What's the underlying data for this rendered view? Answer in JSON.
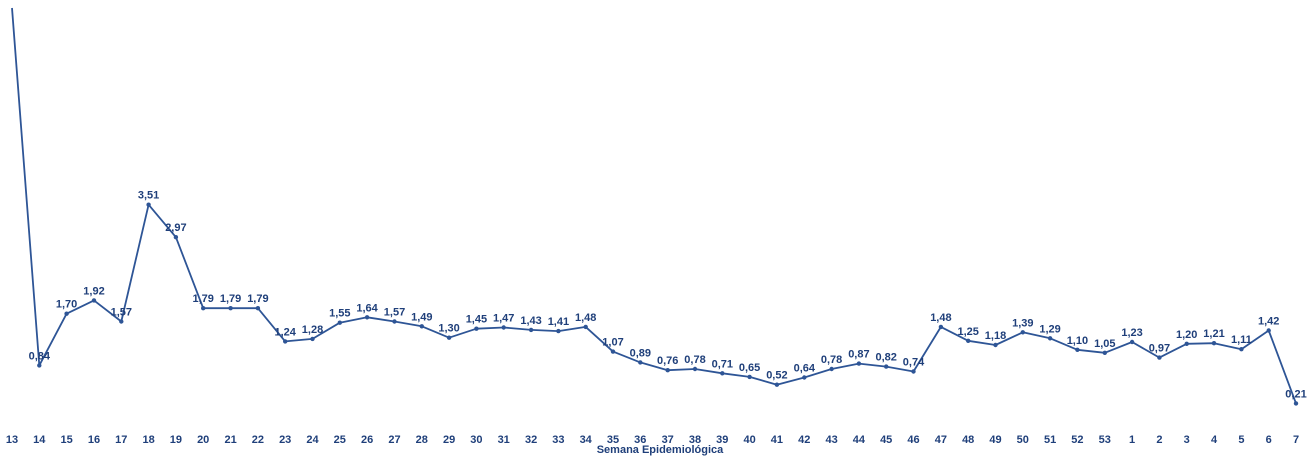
{
  "chart_data": {
    "type": "line",
    "xlabel": "Semana Epidemiológica",
    "ylabel": "",
    "color": "#2e5596",
    "label_color": "#1f3f7a",
    "ylim": [
      0,
      4.64
    ],
    "grid": false,
    "categories": [
      "13",
      "14",
      "15",
      "16",
      "17",
      "18",
      "19",
      "20",
      "21",
      "22",
      "23",
      "24",
      "25",
      "26",
      "27",
      "28",
      "29",
      "30",
      "31",
      "32",
      "33",
      "34",
      "35",
      "36",
      "37",
      "38",
      "39",
      "40",
      "41",
      "42",
      "43",
      "44",
      "45",
      "46",
      "47",
      "48",
      "49",
      "50",
      "51",
      "52",
      "53",
      "1",
      "2",
      "3",
      "4",
      "5",
      "6",
      "7"
    ],
    "series": [
      {
        "values": [
          null,
          0.84,
          1.7,
          1.92,
          1.57,
          3.51,
          2.97,
          1.79,
          1.79,
          1.79,
          1.24,
          1.28,
          1.55,
          1.64,
          1.57,
          1.49,
          1.3,
          1.45,
          1.47,
          1.43,
          1.41,
          1.48,
          1.07,
          0.89,
          0.76,
          0.78,
          0.71,
          0.65,
          0.52,
          0.64,
          0.78,
          0.87,
          0.82,
          0.74,
          1.48,
          1.25,
          1.18,
          1.39,
          1.29,
          1.1,
          1.05,
          1.23,
          0.97,
          1.2,
          1.21,
          1.11,
          1.42,
          0.21
        ],
        "labels": [
          "",
          "0,84",
          "1,70",
          "1,92",
          "1,57",
          "3,51",
          "2,97",
          "1,79",
          "1,79",
          "1,79",
          "1,24",
          "1,28",
          "1,55",
          "1,64",
          "1,57",
          "1,49",
          "1,30",
          "1,45",
          "1,47",
          "1,43",
          "1,41",
          "1,48",
          "1,07",
          "0,89",
          "0,76",
          "0,78",
          "0,71",
          "0,65",
          "0,52",
          "0,64",
          "0,78",
          "0,87",
          "0,82",
          "0,74",
          "1,48",
          "1,25",
          "1,18",
          "1,39",
          "1,29",
          "1,10",
          "1,05",
          "1,23",
          "0,97",
          "1,20",
          "1,21",
          "1,11",
          "1,42",
          "0,21"
        ]
      }
    ]
  }
}
